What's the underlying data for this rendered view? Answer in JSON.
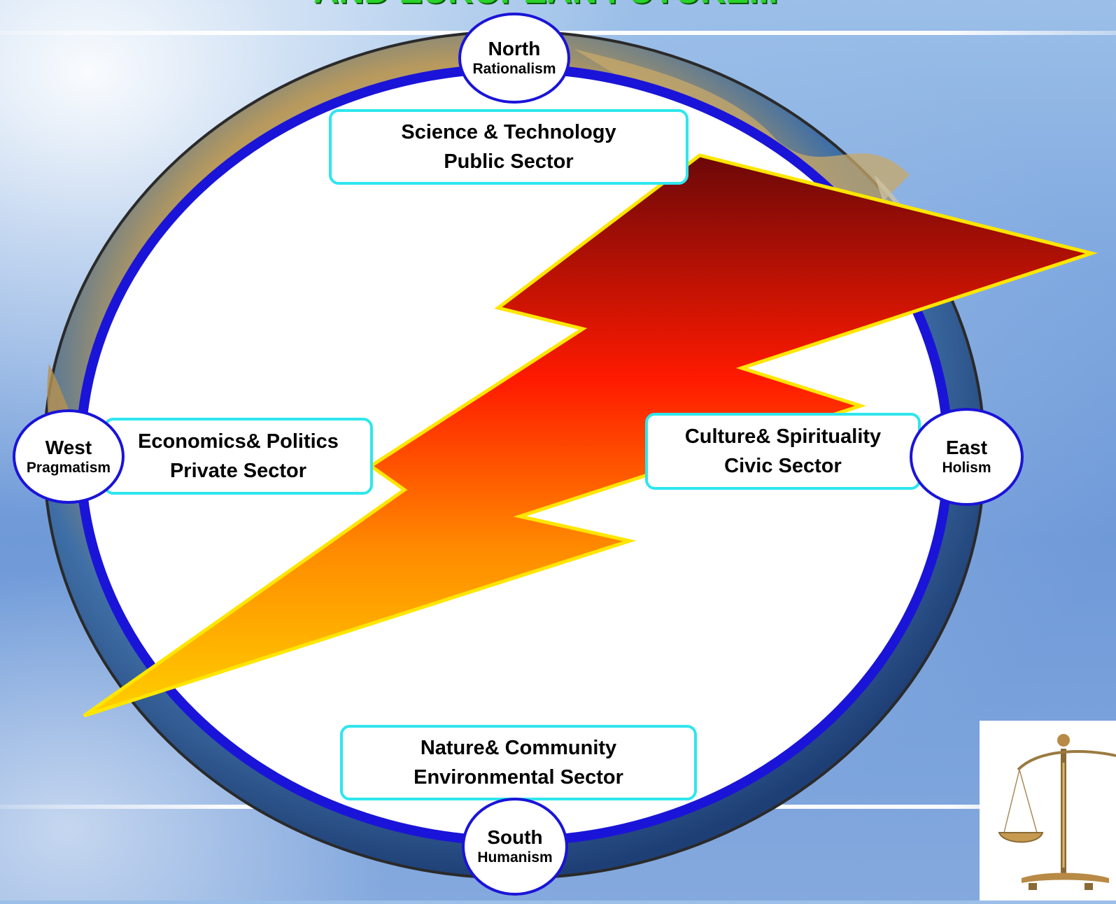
{
  "title": "AND EUROPEAN FUTURE...",
  "colors": {
    "ring": "#1a14d8",
    "sector_border": "#2ee6ee",
    "title": "#29d229",
    "bolt_top": "#6b0808",
    "bolt_mid": "#ff1a00",
    "bolt_bottom": "#ffd000",
    "bolt_outline": "#ffe600"
  },
  "nodes": {
    "north": {
      "direction": "North",
      "philosophy": "Rationalism"
    },
    "west": {
      "direction": "West",
      "philosophy": "Pragmatism"
    },
    "east": {
      "direction": "East",
      "philosophy": "Holism"
    },
    "south": {
      "direction": "South",
      "philosophy": "Humanism"
    }
  },
  "sectors": {
    "north": {
      "line1": "Science & Technology",
      "line2": "Public Sector"
    },
    "west": {
      "line1": "Economics& Politics",
      "line2": "Private Sector"
    },
    "east": {
      "line1": "Culture& Spirituality",
      "line2": "Civic Sector"
    },
    "south": {
      "line1": "Nature& Community",
      "line2": "Environmental Sector"
    }
  },
  "icons": {
    "globe": "earth-globe-icon",
    "bolt": "lightning-bolt-icon",
    "scales": "scales-of-justice-icon"
  }
}
